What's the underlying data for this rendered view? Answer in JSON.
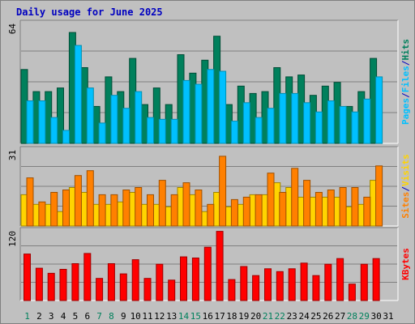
{
  "title": "Daily usage for June 2025",
  "colors": {
    "hits": "#00805c",
    "files": "#00c0ff",
    "sites": "#ffd400",
    "visits": "#ff8000",
    "kbytes": "#ff0000",
    "title": "#0000c0",
    "panel_bg": "#c0c0c0",
    "weekend_label": "#00805c",
    "weekday_label": "#000000",
    "separator": "#0000c0"
  },
  "chart_data": [
    {
      "type": "bar",
      "id": "hits-files",
      "categories": [
        "1",
        "2",
        "3",
        "4",
        "5",
        "6",
        "7",
        "8",
        "9",
        "10",
        "11",
        "12",
        "13",
        "14",
        "15",
        "16",
        "17",
        "18",
        "19",
        "20",
        "21",
        "22",
        "23",
        "24",
        "25",
        "26",
        "27",
        "28",
        "29",
        "30",
        "31"
      ],
      "weekend_days": [
        "1",
        "7",
        "8",
        "14",
        "15",
        "21",
        "22",
        "28",
        "29"
      ],
      "ylim": [
        0,
        64
      ],
      "ytick": "64",
      "side_label": {
        "parts": [
          "Pages",
          "Files",
          "Hits"
        ],
        "separator": "/"
      },
      "series": [
        {
          "name": "Hits",
          "values": [
            40,
            28,
            28,
            30,
            60,
            41,
            20,
            36,
            28,
            46,
            21,
            30,
            21,
            48,
            38,
            45,
            58,
            21,
            31,
            27,
            28,
            41,
            36,
            37,
            26,
            31,
            33,
            20,
            28,
            46,
            null
          ]
        },
        {
          "name": "Files",
          "values": [
            23,
            23,
            14,
            7,
            53,
            30,
            11,
            26,
            19,
            28,
            14,
            13,
            13,
            34,
            32,
            40,
            39,
            12,
            22,
            14,
            19,
            27,
            27,
            22,
            17,
            23,
            20,
            17,
            24,
            36,
            null
          ]
        },
        {
          "name": "Pages",
          "values": [
            null,
            null,
            null,
            null,
            null,
            null,
            null,
            null,
            null,
            null,
            null,
            null,
            null,
            null,
            null,
            null,
            null,
            null,
            null,
            null,
            null,
            null,
            null,
            null,
            null,
            null,
            null,
            null,
            null,
            null,
            null
          ]
        }
      ]
    },
    {
      "type": "bar",
      "id": "sites-visits",
      "categories": [
        "1",
        "2",
        "3",
        "4",
        "5",
        "6",
        "7",
        "8",
        "9",
        "10",
        "11",
        "12",
        "13",
        "14",
        "15",
        "16",
        "17",
        "18",
        "19",
        "20",
        "21",
        "22",
        "23",
        "24",
        "25",
        "26",
        "27",
        "28",
        "29",
        "30",
        "31"
      ],
      "ylim": [
        0,
        31
      ],
      "ytick": "31",
      "side_label": {
        "parts": [
          "Sites",
          "Visits"
        ],
        "separator": "/"
      },
      "series": [
        {
          "name": "Sites",
          "values": [
            13,
            9,
            9,
            6,
            16,
            14,
            9,
            9,
            10,
            14,
            9,
            9,
            8,
            16,
            13,
            6,
            14,
            8,
            9,
            13,
            13,
            18,
            16,
            12,
            12,
            12,
            12,
            8,
            9,
            19,
            null
          ]
        },
        {
          "name": "Visits",
          "values": [
            20,
            10,
            14,
            15,
            21,
            23,
            13,
            13,
            15,
            16,
            13,
            19,
            13,
            18,
            15,
            9,
            29,
            11,
            12,
            13,
            22,
            14,
            24,
            19,
            14,
            15,
            16,
            16,
            12,
            25,
            null
          ]
        }
      ]
    },
    {
      "type": "bar",
      "id": "kbytes",
      "categories": [
        "1",
        "2",
        "3",
        "4",
        "5",
        "6",
        "7",
        "8",
        "9",
        "10",
        "11",
        "12",
        "13",
        "14",
        "15",
        "16",
        "17",
        "18",
        "19",
        "20",
        "21",
        "22",
        "23",
        "24",
        "25",
        "26",
        "27",
        "28",
        "29",
        "30",
        "31"
      ],
      "ylim": [
        0,
        120
      ],
      "ytick": "120",
      "side_label": {
        "parts": [
          "KBytes"
        ],
        "separator": "/"
      },
      "series": [
        {
          "name": "KBytes",
          "values": [
            82,
            57,
            48,
            55,
            65,
            83,
            39,
            65,
            47,
            72,
            39,
            64,
            36,
            77,
            75,
            94,
            122,
            37,
            60,
            44,
            56,
            51,
            56,
            66,
            44,
            64,
            74,
            29,
            64,
            74,
            null
          ]
        }
      ]
    }
  ]
}
